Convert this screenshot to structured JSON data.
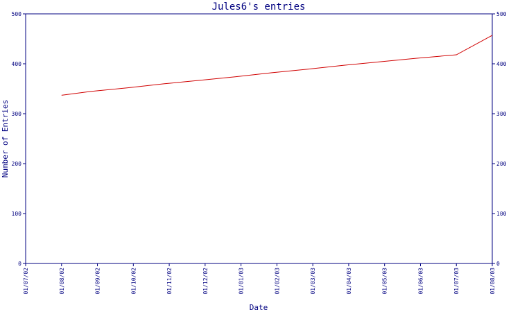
{
  "chart_data": {
    "type": "line",
    "title": "Jules6's entries",
    "xlabel": "Date",
    "ylabel": "Number of Entries",
    "categories": [
      "01/07/02",
      "01/08/02",
      "01/09/02",
      "01/10/02",
      "01/11/02",
      "01/12/02",
      "01/01/03",
      "01/02/03",
      "01/03/03",
      "01/04/03",
      "01/05/03",
      "01/06/03",
      "01/07/03",
      "01/08/03"
    ],
    "ylim": [
      0,
      500
    ],
    "yticks": [
      0,
      100,
      200,
      300,
      400,
      500
    ],
    "grid": false,
    "colors": {
      "axis": "#000080",
      "line": "#d00000"
    },
    "series": [
      {
        "x": [
          1,
          1.86,
          2.87,
          3.87,
          4.87,
          5.84,
          6.84,
          7.84,
          8.87,
          9.87,
          10.87,
          11.84,
          12.0,
          13.0
        ],
        "values": [
          337,
          345,
          352,
          360,
          367,
          374,
          382,
          389,
          397,
          404,
          411,
          417,
          418,
          457
        ]
      }
    ]
  }
}
